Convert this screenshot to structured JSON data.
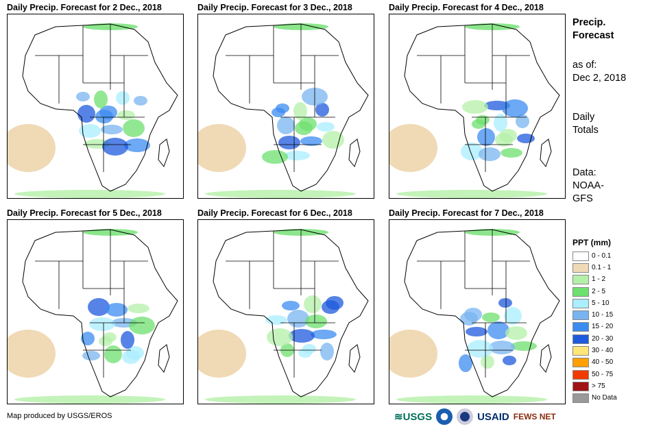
{
  "panels": [
    {
      "title": "Daily Precip. Forecast for 2 Dec., 2018"
    },
    {
      "title": "Daily Precip. Forecast for 3 Dec., 2018"
    },
    {
      "title": "Daily Precip. Forecast for 4 Dec., 2018"
    },
    {
      "title": "Daily Precip. Forecast for 5 Dec., 2018"
    },
    {
      "title": "Daily Precip. Forecast for 6 Dec., 2018"
    },
    {
      "title": "Daily Precip. Forecast for 7 Dec., 2018"
    }
  ],
  "sidebar": {
    "heading_line1": "Precip.",
    "heading_line2": "Forecast",
    "asof_label": "as of:",
    "asof_date": "Dec 2, 2018",
    "totals_line1": "Daily",
    "totals_line2": "Totals",
    "data_line1": "Data:",
    "data_line2": "NOAA-",
    "data_line3": "GFS"
  },
  "legend": {
    "title": "PPT (mm)",
    "items": [
      {
        "label": "0 - 0.1",
        "color": "#ffffff"
      },
      {
        "label": "0.1 - 1",
        "color": "#f0d9b5"
      },
      {
        "label": "1 - 2",
        "color": "#b4f0a8"
      },
      {
        "label": "2 - 5",
        "color": "#6ee06e"
      },
      {
        "label": "5 - 10",
        "color": "#aaeeff"
      },
      {
        "label": "10 - 15",
        "color": "#78b4f0"
      },
      {
        "label": "15 - 20",
        "color": "#3c8cf0"
      },
      {
        "label": "20 - 30",
        "color": "#1e5adc"
      },
      {
        "label": "30 - 40",
        "color": "#ffe678"
      },
      {
        "label": "40 - 50",
        "color": "#ffa000"
      },
      {
        "label": "50 - 75",
        "color": "#f03c00"
      },
      {
        "label": "> 75",
        "color": "#a01414"
      },
      {
        "label": "No Data",
        "color": "#999999"
      }
    ]
  },
  "footer": {
    "credit": "Map produced by USGS/EROS",
    "logo_usgs": "USGS",
    "logo_usaid": "USAID",
    "logo_fewsnet": "FEWS NET"
  }
}
